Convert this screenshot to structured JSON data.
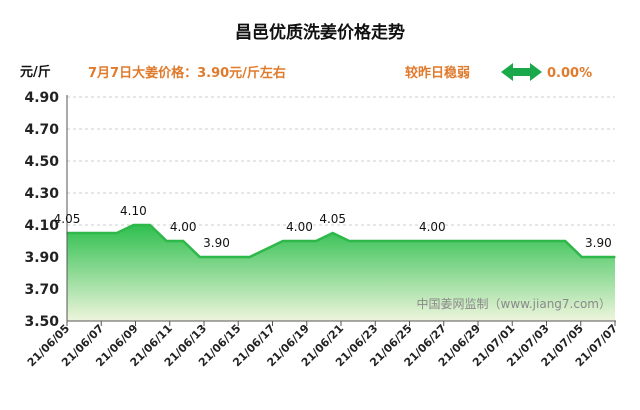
{
  "chart_data": {
    "type": "area",
    "title": "昌邑优质洗姜价格走势",
    "unit": "元/斤",
    "price_note": "7月7日大姜价格：3.90元/斤左右",
    "trend_text": "较昨日稳弱",
    "change_pct": "0.00%",
    "watermark": "中国姜网监制（www.jiang7.com）",
    "ylim": [
      3.5,
      4.9
    ],
    "yticks": [
      "3.50",
      "3.70",
      "3.90",
      "4.10",
      "4.30",
      "4.50",
      "4.70",
      "4.90"
    ],
    "grid": true,
    "x_tick_labels": [
      "21/06/05",
      "21/06/07",
      "21/06/09",
      "21/06/11",
      "21/06/13",
      "21/06/15",
      "21/06/17",
      "21/06/19",
      "21/06/21",
      "21/06/23",
      "21/06/25",
      "21/06/27",
      "21/06/29",
      "21/07/01",
      "21/07/03",
      "21/07/05",
      "21/07/07"
    ],
    "series": [
      {
        "values": [
          4.05,
          4.05,
          4.05,
          4.05,
          4.1,
          4.1,
          4.0,
          4.0,
          3.9,
          3.9,
          3.9,
          3.9,
          3.95,
          4.0,
          4.0,
          4.0,
          4.05,
          4.0,
          4.0,
          4.0,
          4.0,
          4.0,
          4.0,
          4.0,
          4.0,
          4.0,
          4.0,
          4.0,
          4.0,
          4.0,
          4.0,
          3.9,
          3.9,
          3.9
        ]
      }
    ],
    "data_labels": [
      {
        "index": 0,
        "text": "4.05"
      },
      {
        "index": 4,
        "text": "4.10"
      },
      {
        "index": 7,
        "text": "4.00"
      },
      {
        "index": 9,
        "text": "3.90"
      },
      {
        "index": 14,
        "text": "4.00"
      },
      {
        "index": 16,
        "text": "4.05"
      },
      {
        "index": 22,
        "text": "4.00"
      },
      {
        "index": 32,
        "text": "3.90"
      }
    ],
    "colors": {
      "line": "#2fb84a",
      "fill_top": "#2fbf4f",
      "fill_bottom": "#eef5dc",
      "accent": "#e07a2c",
      "arrow": "#19a84a"
    }
  }
}
